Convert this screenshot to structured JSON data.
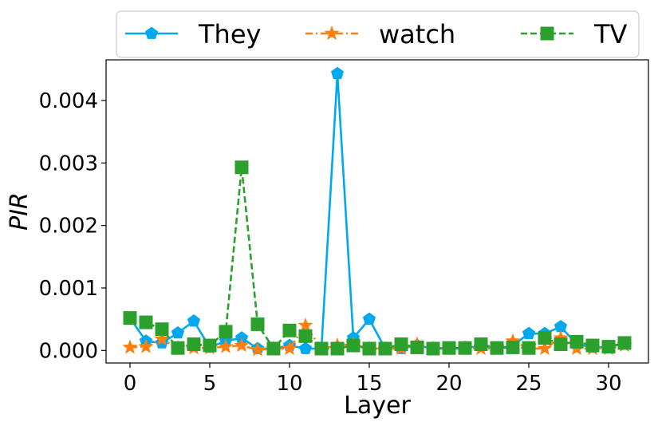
{
  "chart_data": {
    "type": "line",
    "xlabel": "Layer",
    "ylabel": "PIR",
    "xlim": [
      -1.5,
      32.5
    ],
    "ylim": [
      -0.0002,
      0.00465
    ],
    "xticks": [
      0,
      5,
      10,
      15,
      20,
      25,
      30
    ],
    "yticks": [
      0.0,
      0.001,
      0.002,
      0.003,
      0.004
    ],
    "ytick_labels": [
      "0.000",
      "0.001",
      "0.002",
      "0.003",
      "0.004"
    ],
    "legend_position": "top",
    "grid": false,
    "x": [
      0,
      1,
      2,
      3,
      4,
      5,
      6,
      7,
      8,
      9,
      10,
      11,
      12,
      13,
      14,
      15,
      16,
      17,
      18,
      19,
      20,
      21,
      22,
      23,
      24,
      25,
      26,
      27,
      28,
      29,
      30,
      31
    ],
    "series": [
      {
        "name": "They",
        "color": "#00a8f0",
        "marker": "pentagon",
        "linestyle": "solid",
        "values": [
          0.00052,
          0.00015,
          0.00012,
          0.00028,
          0.00047,
          5e-05,
          0.00015,
          0.0002,
          3e-05,
          3e-05,
          8e-05,
          3e-05,
          3e-05,
          0.00443,
          0.0002,
          0.0005,
          3e-05,
          3e-05,
          8e-05,
          3e-05,
          3e-05,
          3e-05,
          8e-05,
          3e-05,
          8e-05,
          0.00027,
          0.00027,
          0.00038,
          0.0001,
          5e-05,
          5e-05,
          0.00012
        ]
      },
      {
        "name": "watch",
        "color": "#ff7f0e",
        "marker": "star",
        "linestyle": "dashdot",
        "values": [
          5e-05,
          6e-05,
          0.00018,
          4e-05,
          4e-05,
          4e-05,
          6e-05,
          8e-05,
          1e-05,
          3e-05,
          3e-05,
          0.0004,
          3e-05,
          8e-05,
          0.0001,
          3e-05,
          3e-05,
          3e-05,
          0.0001,
          3e-05,
          3e-05,
          4e-05,
          3e-05,
          3e-05,
          0.00015,
          3e-05,
          3e-05,
          0.0002,
          3e-05,
          3e-05,
          3e-05,
          8e-05
        ]
      },
      {
        "name": "TV",
        "color": "#2ca02c",
        "marker": "square",
        "linestyle": "dashed",
        "values": [
          0.00052,
          0.00045,
          0.00034,
          4e-05,
          0.0001,
          8e-05,
          0.0003,
          0.00293,
          0.00042,
          3e-05,
          0.00032,
          0.00023,
          3e-05,
          3e-05,
          8e-05,
          3e-05,
          3e-05,
          0.0001,
          5e-05,
          3e-05,
          4e-05,
          4e-05,
          0.0001,
          4e-05,
          5e-05,
          4e-05,
          0.0002,
          0.0001,
          0.00014,
          8e-05,
          6e-05,
          0.00012
        ]
      }
    ]
  }
}
